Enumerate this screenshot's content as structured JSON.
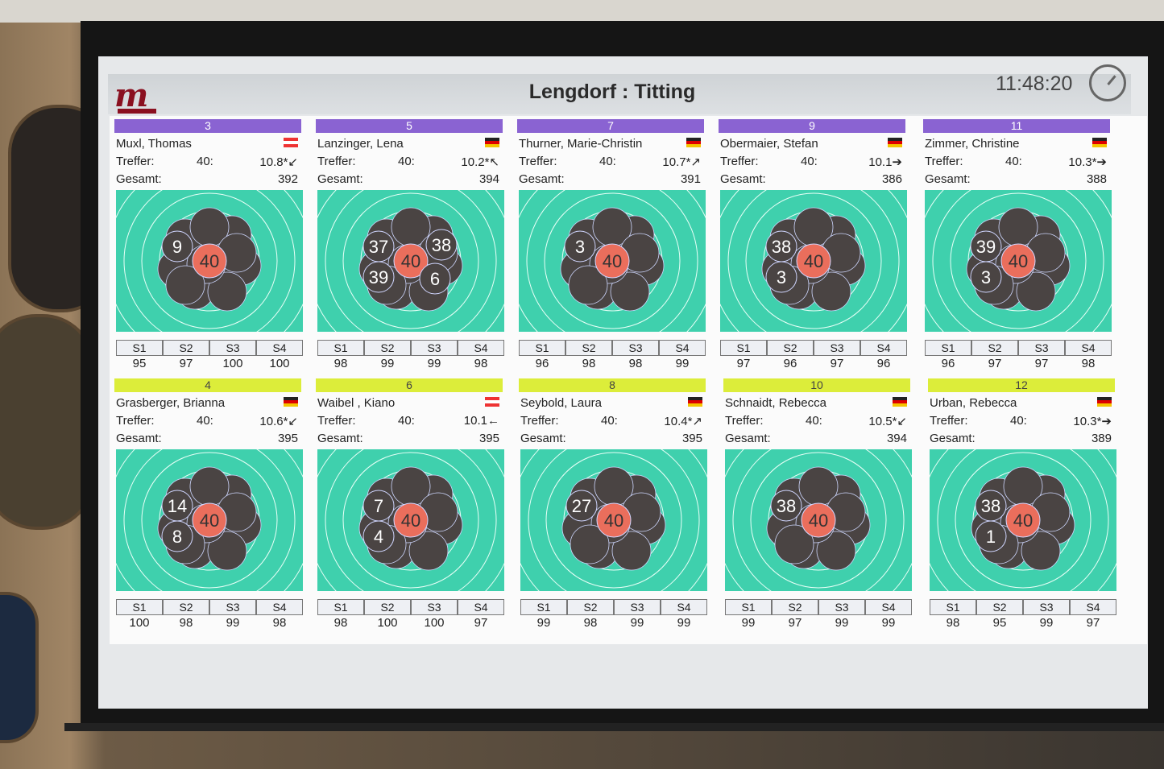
{
  "header": {
    "title": "Lengdorf : Titting",
    "clock": "11:48:20"
  },
  "labels": {
    "treffer": "Treffer:",
    "gesamt": "Gesamt:",
    "mid": "40:",
    "series": [
      "S1",
      "S2",
      "S3",
      "S4"
    ]
  },
  "cards": [
    {
      "num": "3",
      "name": "Muxl, Thomas",
      "flag": "at",
      "treffer": "10.8*↙",
      "gesamt": "392",
      "scores": [
        "95",
        "97",
        "100",
        "100"
      ],
      "shots": [
        "40",
        "9"
      ]
    },
    {
      "num": "5",
      "name": "Lanzinger, Lena",
      "flag": "de",
      "treffer": "10.2*↖",
      "gesamt": "394",
      "scores": [
        "98",
        "99",
        "99",
        "98"
      ],
      "shots": [
        "40",
        "37",
        "39",
        "38",
        "6"
      ]
    },
    {
      "num": "7",
      "name": "Thurner, Marie-Christin",
      "flag": "de",
      "treffer": "10.7*↗",
      "gesamt": "391",
      "scores": [
        "96",
        "98",
        "98",
        "99"
      ],
      "shots": [
        "40",
        "3"
      ]
    },
    {
      "num": "9",
      "name": "Obermaier, Stefan",
      "flag": "de",
      "treffer": "10.1➔",
      "gesamt": "386",
      "scores": [
        "97",
        "96",
        "97",
        "96"
      ],
      "shots": [
        "40",
        "38",
        "3"
      ]
    },
    {
      "num": "11",
      "name": "Zimmer, Christine",
      "flag": "de",
      "treffer": "10.3*➔",
      "gesamt": "388",
      "scores": [
        "96",
        "97",
        "97",
        "98"
      ],
      "shots": [
        "40",
        "39",
        "3"
      ]
    },
    {
      "num": "4",
      "name": "Grasberger, Brianna",
      "flag": "de",
      "treffer": "10.6*↙",
      "gesamt": "395",
      "scores": [
        "100",
        "98",
        "99",
        "98"
      ],
      "shots": [
        "40",
        "14",
        "8"
      ]
    },
    {
      "num": "6",
      "name": "Waibel , Kiano",
      "flag": "at",
      "treffer": "10.1←",
      "gesamt": "395",
      "scores": [
        "98",
        "100",
        "100",
        "97"
      ],
      "shots": [
        "40",
        "7",
        "4"
      ]
    },
    {
      "num": "8",
      "name": "Seybold, Laura",
      "flag": "de",
      "treffer": "10.4*↗",
      "gesamt": "395",
      "scores": [
        "99",
        "98",
        "99",
        "99"
      ],
      "shots": [
        "40",
        "27"
      ]
    },
    {
      "num": "10",
      "name": "Schnaidt, Rebecca",
      "flag": "de",
      "treffer": "10.5*↙",
      "gesamt": "394",
      "scores": [
        "99",
        "97",
        "99",
        "99"
      ],
      "shots": [
        "40",
        "38"
      ]
    },
    {
      "num": "12",
      "name": "Urban, Rebecca",
      "flag": "de",
      "treffer": "10.3*➔",
      "gesamt": "389",
      "scores": [
        "98",
        "95",
        "99",
        "97"
      ],
      "shots": [
        "40",
        "38",
        "1"
      ]
    }
  ],
  "colors": {
    "target_bg": "#3fd0ad",
    "shot": "#4a4443",
    "center_shot": "#ea6e5c",
    "top_band": "#8a63d2",
    "bottom_band": "#dced3a"
  }
}
